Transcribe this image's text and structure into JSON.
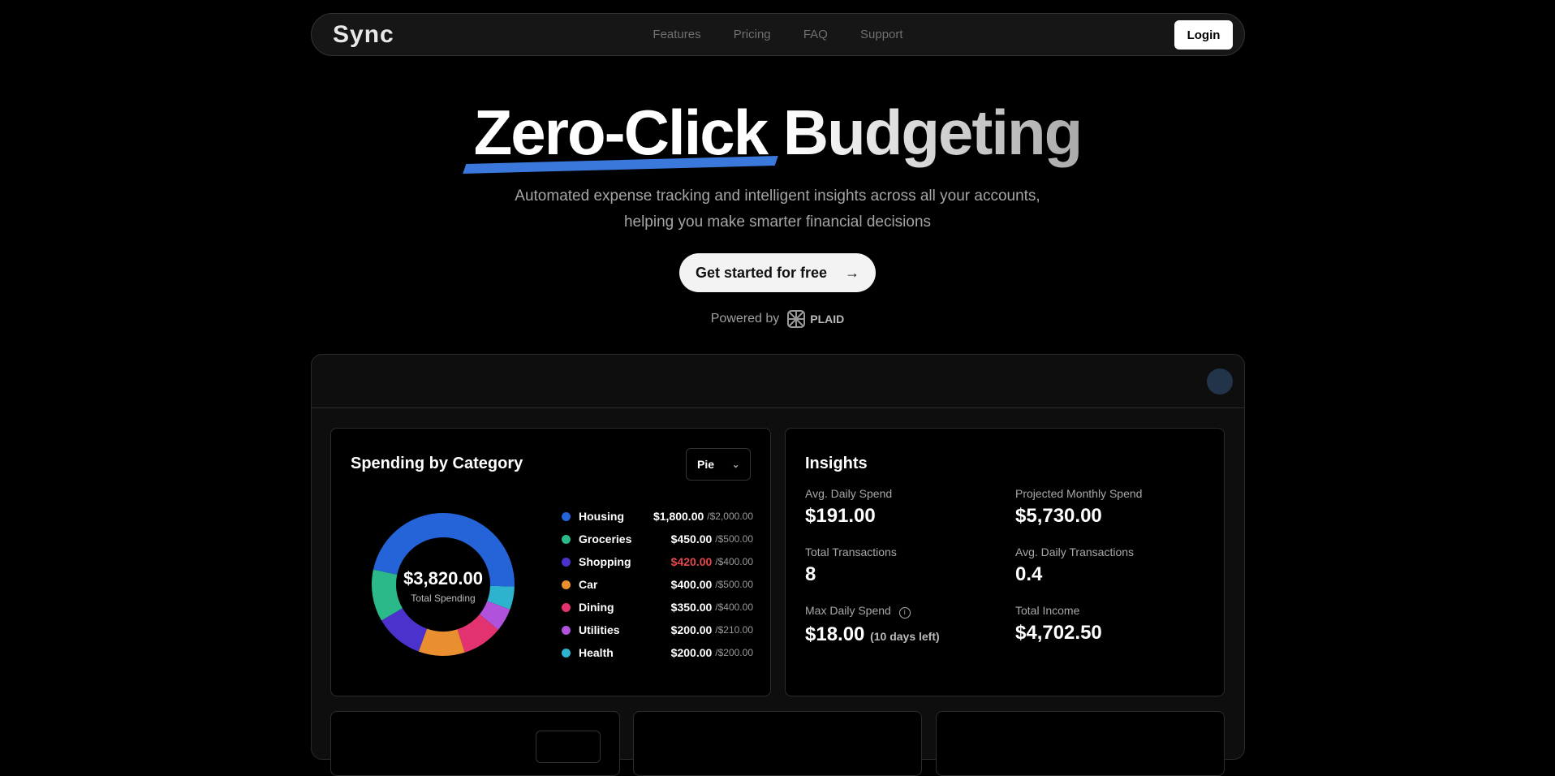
{
  "nav": {
    "logo": "Sync",
    "links": [
      "Features",
      "Pricing",
      "FAQ",
      "Support"
    ],
    "login": "Login"
  },
  "hero": {
    "title_a": "Zero-Click",
    "title_b": "Budgeting",
    "subtitle_1": "Automated expense tracking and intelligent insights across all your accounts,",
    "subtitle_2": "helping you make smarter financial decisions",
    "cta": "Get started for free",
    "powered_by": "Powered by",
    "plaid": "PLAID"
  },
  "spending": {
    "title": "Spending by Category",
    "chart_type": "Pie",
    "total": "$3,820.00",
    "total_label": "Total Spending",
    "categories": [
      {
        "name": "Housing",
        "spent": "$1,800.00",
        "budget": "/$2,000.00",
        "value": 1800,
        "color": "#2563d9",
        "over": false
      },
      {
        "name": "Groceries",
        "spent": "$450.00",
        "budget": "/$500.00",
        "value": 450,
        "color": "#2bb98a",
        "over": false
      },
      {
        "name": "Shopping",
        "spent": "$420.00",
        "budget": "/$400.00",
        "value": 420,
        "color": "#4c32cc",
        "over": true
      },
      {
        "name": "Car",
        "spent": "$400.00",
        "budget": "/$500.00",
        "value": 400,
        "color": "#ea8f30",
        "over": false
      },
      {
        "name": "Dining",
        "spent": "$350.00",
        "budget": "/$400.00",
        "value": 350,
        "color": "#e23370",
        "over": false
      },
      {
        "name": "Utilities",
        "spent": "$200.00",
        "budget": "/$210.00",
        "value": 200,
        "color": "#b052dc",
        "over": false
      },
      {
        "name": "Health",
        "spent": "$200.00",
        "budget": "/$200.00",
        "value": 200,
        "color": "#2eb3cf",
        "over": false
      }
    ]
  },
  "insights": {
    "title": "Insights",
    "items": [
      {
        "label": "Avg. Daily Spend",
        "value": "$191.00"
      },
      {
        "label": "Projected Monthly Spend",
        "value": "$5,730.00"
      },
      {
        "label": "Total Transactions",
        "value": "8"
      },
      {
        "label": "Avg. Daily Transactions",
        "value": "0.4"
      },
      {
        "label": "Max Daily Spend",
        "value": "$18.00",
        "note": "(10 days left)"
      },
      {
        "label": "Total Income",
        "value": "$4,702.50"
      }
    ]
  }
}
